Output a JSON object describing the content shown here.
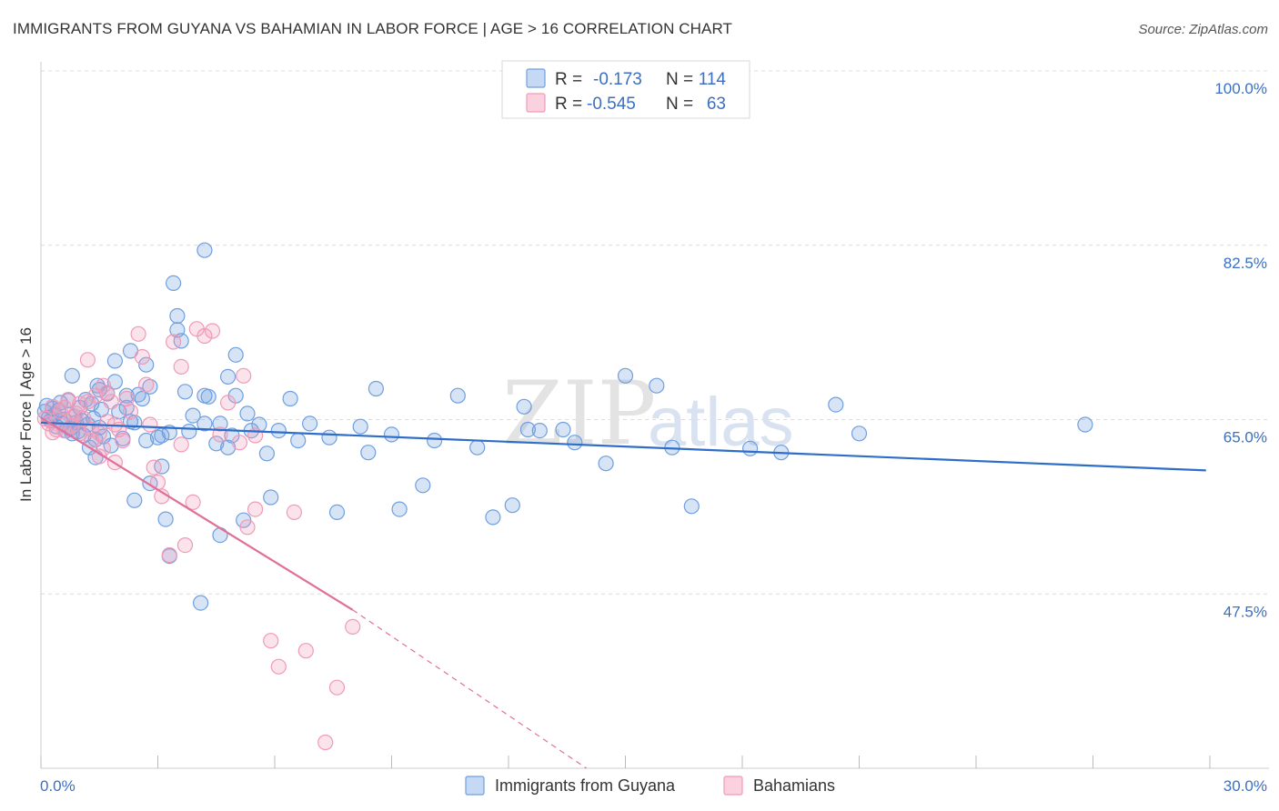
{
  "header": {
    "title": "IMMIGRANTS FROM GUYANA VS BAHAMIAN IN LABOR FORCE | AGE > 16 CORRELATION CHART",
    "source": "Source: ZipAtlas.com"
  },
  "watermark": {
    "zip": "ZIP",
    "atlas": "atlas"
  },
  "chart_data": {
    "type": "scatter",
    "title": "IMMIGRANTS FROM GUYANA VS BAHAMIAN IN LABOR FORCE | AGE > 16 CORRELATION CHART",
    "ylabel": "In Labor Force | Age > 16",
    "xlabel": "",
    "xlim": [
      0,
      30
    ],
    "ylim": [
      30,
      100
    ],
    "y_ticks": [
      100.0,
      82.5,
      65.0,
      47.5
    ],
    "y_tick_labels": [
      "100.0%",
      "82.5%",
      "65.0%",
      "47.5%"
    ],
    "x_tick_labels": {
      "min": "0.0%",
      "max": "30.0%"
    },
    "grid": "horizontal dashed",
    "legend_placement": "top-center",
    "series": [
      {
        "name": "Immigrants from Guyana",
        "color": "#6f9fe0",
        "line_color": "#2f6ec8",
        "r_label": "R =",
        "r_value": "-0.173",
        "n_label": "N =",
        "n_value": "114",
        "trend": {
          "x": [
            0.0,
            29.9
          ],
          "y": [
            64.7,
            59.9
          ]
        },
        "points": [
          [
            0.1,
            65.8
          ],
          [
            0.15,
            66.4
          ],
          [
            0.2,
            65.2
          ],
          [
            0.25,
            64.9
          ],
          [
            0.3,
            66.1
          ],
          [
            0.35,
            65.5
          ],
          [
            0.4,
            64.3
          ],
          [
            0.45,
            65.9
          ],
          [
            0.5,
            66.7
          ],
          [
            0.55,
            64.6
          ],
          [
            0.6,
            65.0
          ],
          [
            0.65,
            63.9
          ],
          [
            0.7,
            66.9
          ],
          [
            0.75,
            64.1
          ],
          [
            0.8,
            63.6
          ],
          [
            0.85,
            65.3
          ],
          [
            0.9,
            64.7
          ],
          [
            0.95,
            63.8
          ],
          [
            1.0,
            66.2
          ],
          [
            1.05,
            64.9
          ],
          [
            1.1,
            63.4
          ],
          [
            1.15,
            67.0
          ],
          [
            1.2,
            64.5
          ],
          [
            1.25,
            62.2
          ],
          [
            1.3,
            66.6
          ],
          [
            1.35,
            65.1
          ],
          [
            1.4,
            63.0
          ],
          [
            1.45,
            68.4
          ],
          [
            1.5,
            64.2
          ],
          [
            1.55,
            66.0
          ],
          [
            1.6,
            63.3
          ],
          [
            1.7,
            67.6
          ],
          [
            1.8,
            62.4
          ],
          [
            1.9,
            68.8
          ],
          [
            2.0,
            65.8
          ],
          [
            2.1,
            63.1
          ],
          [
            2.2,
            67.4
          ],
          [
            2.3,
            64.8
          ],
          [
            0.8,
            69.4
          ],
          [
            1.4,
            61.2
          ],
          [
            1.5,
            68.0
          ],
          [
            1.9,
            70.9
          ],
          [
            2.2,
            66.2
          ],
          [
            2.4,
            64.7
          ],
          [
            2.5,
            67.5
          ],
          [
            2.7,
            62.9
          ],
          [
            2.8,
            58.6
          ],
          [
            2.3,
            71.9
          ],
          [
            2.4,
            56.9
          ],
          [
            2.6,
            67.1
          ],
          [
            2.7,
            70.5
          ],
          [
            3.0,
            63.2
          ],
          [
            3.1,
            63.4
          ],
          [
            2.8,
            68.3
          ],
          [
            3.1,
            60.3
          ],
          [
            3.2,
            55.0
          ],
          [
            3.3,
            63.7
          ],
          [
            3.3,
            51.3
          ],
          [
            3.4,
            78.7
          ],
          [
            3.5,
            74.0
          ],
          [
            3.5,
            75.4
          ],
          [
            3.6,
            72.9
          ],
          [
            3.7,
            67.8
          ],
          [
            3.9,
            65.4
          ],
          [
            3.8,
            63.8
          ],
          [
            4.1,
            46.6
          ],
          [
            4.2,
            82.0
          ],
          [
            4.2,
            67.4
          ],
          [
            4.2,
            64.6
          ],
          [
            4.3,
            67.3
          ],
          [
            4.5,
            62.6
          ],
          [
            4.6,
            64.6
          ],
          [
            4.6,
            53.4
          ],
          [
            4.8,
            69.3
          ],
          [
            4.8,
            62.2
          ],
          [
            4.9,
            63.4
          ],
          [
            5.0,
            71.5
          ],
          [
            5.0,
            67.4
          ],
          [
            5.2,
            54.9
          ],
          [
            5.3,
            65.6
          ],
          [
            5.4,
            63.9
          ],
          [
            5.6,
            64.5
          ],
          [
            5.8,
            61.6
          ],
          [
            5.9,
            57.2
          ],
          [
            6.1,
            63.9
          ],
          [
            6.4,
            67.1
          ],
          [
            6.6,
            62.9
          ],
          [
            6.9,
            64.6
          ],
          [
            7.4,
            63.2
          ],
          [
            7.6,
            55.7
          ],
          [
            8.2,
            64.3
          ],
          [
            8.4,
            61.7
          ],
          [
            8.6,
            68.1
          ],
          [
            9.0,
            63.5
          ],
          [
            9.2,
            56.0
          ],
          [
            9.8,
            58.4
          ],
          [
            10.1,
            62.9
          ],
          [
            10.7,
            67.4
          ],
          [
            11.2,
            62.2
          ],
          [
            11.6,
            55.2
          ],
          [
            12.1,
            56.4
          ],
          [
            12.4,
            66.3
          ],
          [
            12.5,
            64.0
          ],
          [
            12.8,
            63.9
          ],
          [
            13.4,
            64.0
          ],
          [
            13.7,
            62.7
          ],
          [
            14.5,
            60.6
          ],
          [
            15.0,
            69.4
          ],
          [
            15.8,
            68.4
          ],
          [
            16.2,
            62.2
          ],
          [
            16.7,
            56.3
          ],
          [
            18.2,
            62.1
          ],
          [
            19.0,
            61.7
          ],
          [
            20.4,
            66.5
          ],
          [
            21.0,
            63.6
          ],
          [
            26.8,
            64.5
          ]
        ]
      },
      {
        "name": "Bahamians",
        "color": "#f09ab8",
        "line_color": "#e07098",
        "r_label": "R =",
        "r_value": "-0.545",
        "n_label": "N =",
        "n_value": "63",
        "trend": {
          "x": [
            0.0,
            8.0
          ],
          "y": [
            65.2,
            45.9
          ]
        },
        "trend_dashed": {
          "x": [
            8.0,
            14.0
          ],
          "y": [
            45.9,
            30.0
          ]
        },
        "points": [
          [
            0.1,
            65.1
          ],
          [
            0.2,
            64.6
          ],
          [
            0.3,
            66.3
          ],
          [
            0.4,
            64.0
          ],
          [
            0.5,
            65.8
          ],
          [
            0.6,
            63.9
          ],
          [
            0.7,
            67.0
          ],
          [
            0.8,
            64.4
          ],
          [
            0.9,
            65.6
          ],
          [
            1.0,
            66.6
          ],
          [
            1.1,
            65.1
          ],
          [
            0.3,
            63.7
          ],
          [
            0.6,
            66.2
          ],
          [
            0.8,
            65.2
          ],
          [
            1.0,
            63.6
          ],
          [
            1.2,
            66.8
          ],
          [
            1.3,
            64.0
          ],
          [
            1.4,
            67.4
          ],
          [
            1.5,
            63.6
          ],
          [
            1.6,
            62.1
          ],
          [
            1.8,
            66.8
          ],
          [
            1.9,
            64.5
          ],
          [
            1.7,
            64.8
          ],
          [
            1.2,
            71.0
          ],
          [
            1.6,
            68.4
          ],
          [
            1.7,
            67.7
          ],
          [
            1.3,
            62.9
          ],
          [
            1.5,
            61.3
          ],
          [
            1.9,
            60.7
          ],
          [
            2.0,
            64.0
          ],
          [
            2.1,
            62.9
          ],
          [
            2.2,
            67.1
          ],
          [
            2.3,
            65.8
          ],
          [
            2.5,
            73.6
          ],
          [
            2.6,
            71.3
          ],
          [
            2.7,
            68.5
          ],
          [
            2.8,
            64.5
          ],
          [
            2.9,
            60.2
          ],
          [
            3.0,
            58.7
          ],
          [
            3.1,
            57.3
          ],
          [
            3.3,
            51.4
          ],
          [
            3.4,
            72.8
          ],
          [
            3.6,
            70.3
          ],
          [
            3.6,
            62.5
          ],
          [
            3.7,
            52.4
          ],
          [
            3.9,
            56.7
          ],
          [
            4.0,
            74.1
          ],
          [
            4.2,
            73.4
          ],
          [
            4.4,
            73.9
          ],
          [
            4.6,
            63.5
          ],
          [
            4.8,
            66.7
          ],
          [
            5.1,
            62.7
          ],
          [
            5.5,
            63.4
          ],
          [
            5.2,
            69.4
          ],
          [
            5.3,
            54.2
          ],
          [
            5.5,
            56.0
          ],
          [
            5.9,
            42.8
          ],
          [
            6.1,
            40.2
          ],
          [
            6.5,
            55.7
          ],
          [
            6.8,
            41.8
          ],
          [
            7.3,
            32.6
          ],
          [
            7.6,
            38.1
          ],
          [
            8.0,
            44.2
          ]
        ]
      }
    ]
  }
}
